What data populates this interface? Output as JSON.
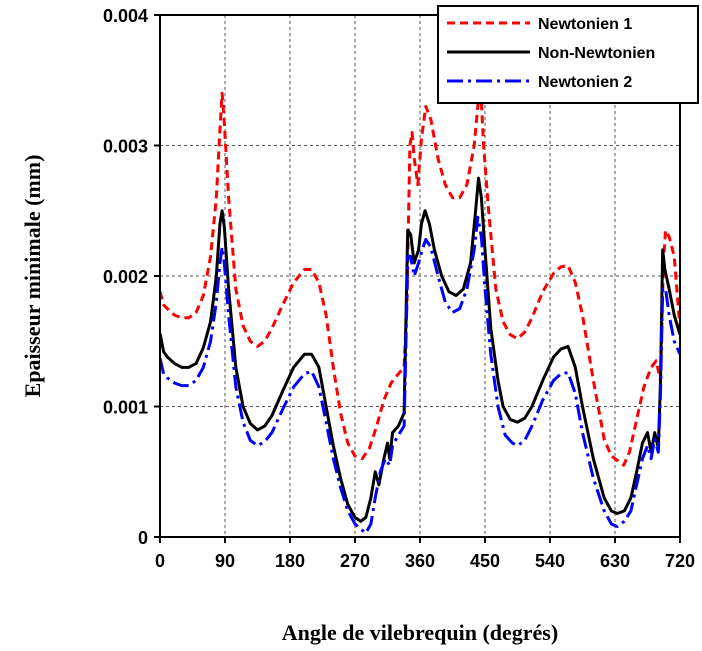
{
  "chart_data": {
    "type": "line",
    "xlabel": "Angle de vilebrequin (degrés)",
    "ylabel": "Epaisseur minimale (mm)",
    "xlim": [
      0,
      720
    ],
    "ylim": [
      0,
      0.004
    ],
    "xticks": [
      0,
      90,
      180,
      270,
      360,
      450,
      540,
      630,
      720
    ],
    "yticks": [
      0,
      0.001,
      0.002,
      0.003,
      0.004
    ],
    "ytick_labels": [
      "0",
      "0.001",
      "0.002",
      "0.003",
      "0.004"
    ],
    "grid": true,
    "legend_position": "top-right",
    "series": [
      {
        "name": "Newtonien 1",
        "color": "#ff0000",
        "style": "dashed",
        "points": [
          [
            0,
            0.00188
          ],
          [
            5,
            0.00178
          ],
          [
            10,
            0.00175
          ],
          [
            20,
            0.0017
          ],
          [
            30,
            0.00168
          ],
          [
            40,
            0.00168
          ],
          [
            50,
            0.00172
          ],
          [
            60,
            0.00185
          ],
          [
            70,
            0.00215
          ],
          [
            78,
            0.0026
          ],
          [
            83,
            0.00312
          ],
          [
            86,
            0.0034
          ],
          [
            89,
            0.00318
          ],
          [
            95,
            0.0026
          ],
          [
            105,
            0.0019
          ],
          [
            115,
            0.00162
          ],
          [
            125,
            0.0015
          ],
          [
            135,
            0.00146
          ],
          [
            145,
            0.0015
          ],
          [
            155,
            0.0016
          ],
          [
            170,
            0.00178
          ],
          [
            185,
            0.00195
          ],
          [
            200,
            0.00205
          ],
          [
            210,
            0.00205
          ],
          [
            220,
            0.00195
          ],
          [
            230,
            0.0017
          ],
          [
            240,
            0.0013
          ],
          [
            250,
            0.00095
          ],
          [
            260,
            0.00072
          ],
          [
            270,
            0.00062
          ],
          [
            280,
            0.0006
          ],
          [
            290,
            0.00068
          ],
          [
            300,
            0.00085
          ],
          [
            310,
            0.00105
          ],
          [
            320,
            0.00118
          ],
          [
            330,
            0.00125
          ],
          [
            338,
            0.0013
          ],
          [
            342,
            0.0018
          ],
          [
            346,
            0.003
          ],
          [
            349,
            0.0031
          ],
          [
            352,
            0.0029
          ],
          [
            357,
            0.0027
          ],
          [
            362,
            0.00305
          ],
          [
            368,
            0.0033
          ],
          [
            375,
            0.0032
          ],
          [
            385,
            0.0029
          ],
          [
            395,
            0.0027
          ],
          [
            405,
            0.0026
          ],
          [
            415,
            0.0026
          ],
          [
            425,
            0.0027
          ],
          [
            435,
            0.003
          ],
          [
            440,
            0.0033
          ],
          [
            444,
            0.00345
          ],
          [
            448,
            0.003
          ],
          [
            455,
            0.0025
          ],
          [
            465,
            0.0019
          ],
          [
            475,
            0.00165
          ],
          [
            485,
            0.00155
          ],
          [
            495,
            0.00152
          ],
          [
            505,
            0.00157
          ],
          [
            515,
            0.00168
          ],
          [
            530,
            0.00188
          ],
          [
            545,
            0.00202
          ],
          [
            555,
            0.00207
          ],
          [
            565,
            0.00208
          ],
          [
            575,
            0.00195
          ],
          [
            585,
            0.0017
          ],
          [
            600,
            0.0012
          ],
          [
            615,
            0.00075
          ],
          [
            625,
            0.00062
          ],
          [
            635,
            0.00058
          ],
          [
            642,
            0.00055
          ],
          [
            650,
            0.00065
          ],
          [
            660,
            0.0009
          ],
          [
            670,
            0.00115
          ],
          [
            680,
            0.0013
          ],
          [
            687,
            0.00135
          ],
          [
            693,
            0.0012
          ],
          [
            697,
            0.0021
          ],
          [
            700,
            0.00235
          ],
          [
            705,
            0.0023
          ],
          [
            712,
            0.00215
          ],
          [
            720,
            0.0016
          ]
        ]
      },
      {
        "name": "Non-Newtonien",
        "color": "#000000",
        "style": "solid",
        "points": [
          [
            0,
            0.00156
          ],
          [
            5,
            0.00142
          ],
          [
            10,
            0.00138
          ],
          [
            20,
            0.00133
          ],
          [
            30,
            0.0013
          ],
          [
            40,
            0.0013
          ],
          [
            50,
            0.00133
          ],
          [
            60,
            0.00145
          ],
          [
            70,
            0.00165
          ],
          [
            78,
            0.002
          ],
          [
            83,
            0.0024
          ],
          [
            86,
            0.0025
          ],
          [
            89,
            0.00238
          ],
          [
            95,
            0.0019
          ],
          [
            105,
            0.0013
          ],
          [
            115,
            0.001
          ],
          [
            125,
            0.00087
          ],
          [
            135,
            0.00082
          ],
          [
            145,
            0.00085
          ],
          [
            155,
            0.00093
          ],
          [
            170,
            0.00112
          ],
          [
            185,
            0.0013
          ],
          [
            200,
            0.0014
          ],
          [
            210,
            0.0014
          ],
          [
            220,
            0.0013
          ],
          [
            230,
            0.001
          ],
          [
            240,
            0.0007
          ],
          [
            250,
            0.00045
          ],
          [
            260,
            0.00025
          ],
          [
            270,
            0.00015
          ],
          [
            278,
            0.00012
          ],
          [
            285,
            0.00015
          ],
          [
            292,
            0.0003
          ],
          [
            298,
            0.0005
          ],
          [
            303,
            0.0004
          ],
          [
            310,
            0.0006
          ],
          [
            315,
            0.00072
          ],
          [
            318,
            0.0006
          ],
          [
            322,
            0.0008
          ],
          [
            330,
            0.00085
          ],
          [
            338,
            0.00095
          ],
          [
            341,
            0.0018
          ],
          [
            343,
            0.00235
          ],
          [
            347,
            0.00232
          ],
          [
            352,
            0.0021
          ],
          [
            358,
            0.0022
          ],
          [
            362,
            0.0024
          ],
          [
            367,
            0.0025
          ],
          [
            373,
            0.0024
          ],
          [
            380,
            0.0022
          ],
          [
            390,
            0.002
          ],
          [
            400,
            0.00188
          ],
          [
            410,
            0.00185
          ],
          [
            420,
            0.0019
          ],
          [
            430,
            0.0021
          ],
          [
            437,
            0.0025
          ],
          [
            441,
            0.00275
          ],
          [
            445,
            0.0026
          ],
          [
            450,
            0.0022
          ],
          [
            458,
            0.0016
          ],
          [
            468,
            0.0012
          ],
          [
            475,
            0.001
          ],
          [
            485,
            0.0009
          ],
          [
            495,
            0.00088
          ],
          [
            505,
            0.00091
          ],
          [
            515,
            0.001
          ],
          [
            530,
            0.0012
          ],
          [
            545,
            0.00138
          ],
          [
            555,
            0.00144
          ],
          [
            565,
            0.00146
          ],
          [
            575,
            0.0013
          ],
          [
            585,
            0.001
          ],
          [
            600,
            0.0006
          ],
          [
            615,
            0.0003
          ],
          [
            625,
            0.0002
          ],
          [
            633,
            0.00018
          ],
          [
            643,
            0.0002
          ],
          [
            652,
            0.0003
          ],
          [
            660,
            0.0005
          ],
          [
            668,
            0.00072
          ],
          [
            675,
            0.0008
          ],
          [
            680,
            0.00065
          ],
          [
            685,
            0.0008
          ],
          [
            690,
            0.00068
          ],
          [
            693,
            0.0012
          ],
          [
            696,
            0.0022
          ],
          [
            699,
            0.00205
          ],
          [
            705,
            0.0019
          ],
          [
            712,
            0.0017
          ],
          [
            720,
            0.00155
          ]
        ]
      },
      {
        "name": "Newtonien 2",
        "color": "#0000ff",
        "style": "dashdot",
        "points": [
          [
            0,
            0.00137
          ],
          [
            5,
            0.00125
          ],
          [
            10,
            0.00122
          ],
          [
            20,
            0.00118
          ],
          [
            30,
            0.00116
          ],
          [
            40,
            0.00116
          ],
          [
            50,
            0.0012
          ],
          [
            60,
            0.0013
          ],
          [
            70,
            0.0015
          ],
          [
            78,
            0.0018
          ],
          [
            83,
            0.0021
          ],
          [
            86,
            0.00222
          ],
          [
            89,
            0.0021
          ],
          [
            95,
            0.0017
          ],
          [
            105,
            0.00115
          ],
          [
            115,
            0.00088
          ],
          [
            125,
            0.00074
          ],
          [
            135,
            0.0007
          ],
          [
            145,
            0.00073
          ],
          [
            155,
            0.0008
          ],
          [
            170,
            0.00098
          ],
          [
            185,
            0.00115
          ],
          [
            200,
            0.00125
          ],
          [
            210,
            0.00127
          ],
          [
            220,
            0.00115
          ],
          [
            230,
            0.00088
          ],
          [
            240,
            0.0006
          ],
          [
            250,
            0.00038
          ],
          [
            260,
            0.0002
          ],
          [
            270,
            0.0001
          ],
          [
            278,
            6e-05
          ],
          [
            285,
            3e-05
          ],
          [
            292,
            0.0001
          ],
          [
            298,
            0.0003
          ],
          [
            305,
            0.0005
          ],
          [
            312,
            0.0006
          ],
          [
            318,
            0.00055
          ],
          [
            322,
            0.0007
          ],
          [
            330,
            0.00078
          ],
          [
            338,
            0.00085
          ],
          [
            341,
            0.0016
          ],
          [
            343,
            0.00215
          ],
          [
            347,
            0.00215
          ],
          [
            352,
            0.002
          ],
          [
            358,
            0.0021
          ],
          [
            363,
            0.0022
          ],
          [
            368,
            0.00228
          ],
          [
            375,
            0.00222
          ],
          [
            385,
            0.002
          ],
          [
            395,
            0.0018
          ],
          [
            405,
            0.00172
          ],
          [
            415,
            0.00175
          ],
          [
            425,
            0.0019
          ],
          [
            435,
            0.0022
          ],
          [
            440,
            0.00245
          ],
          [
            445,
            0.0023
          ],
          [
            450,
            0.0019
          ],
          [
            458,
            0.0014
          ],
          [
            468,
            0.001
          ],
          [
            478,
            0.00078
          ],
          [
            488,
            0.00072
          ],
          [
            495,
            0.0007
          ],
          [
            505,
            0.00074
          ],
          [
            515,
            0.00085
          ],
          [
            530,
            0.00105
          ],
          [
            545,
            0.0012
          ],
          [
            555,
            0.00125
          ],
          [
            565,
            0.00126
          ],
          [
            575,
            0.0011
          ],
          [
            585,
            0.0008
          ],
          [
            600,
            0.00045
          ],
          [
            615,
            0.0002
          ],
          [
            625,
            0.0001
          ],
          [
            633,
            8e-05
          ],
          [
            643,
            0.00012
          ],
          [
            652,
            0.0002
          ],
          [
            660,
            0.0004
          ],
          [
            668,
            0.0006
          ],
          [
            675,
            0.0007
          ],
          [
            680,
            0.0006
          ],
          [
            685,
            0.00075
          ],
          [
            690,
            0.00065
          ],
          [
            693,
            0.0011
          ],
          [
            696,
            0.0019
          ],
          [
            700,
            0.0019
          ],
          [
            705,
            0.0017
          ],
          [
            712,
            0.0015
          ],
          [
            720,
            0.0014
          ]
        ]
      }
    ]
  }
}
